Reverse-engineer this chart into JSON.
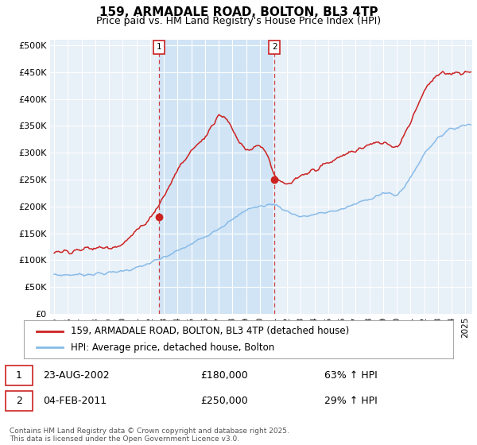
{
  "title": "159, ARMADALE ROAD, BOLTON, BL3 4TP",
  "subtitle": "Price paid vs. HM Land Registry's House Price Index (HPI)",
  "red_label": "159, ARMADALE ROAD, BOLTON, BL3 4TP (detached house)",
  "blue_label": "HPI: Average price, detached house, Bolton",
  "red_color": "#cc2222",
  "blue_color": "#88bbe8",
  "highlight_color": "#d0e4f5",
  "plot_bg": "#e8f0f8",
  "yticks": [
    0,
    50000,
    100000,
    150000,
    200000,
    250000,
    300000,
    350000,
    400000,
    450000,
    500000
  ],
  "ylim": [
    0,
    510000
  ],
  "xlim_start": 1994.7,
  "xlim_end": 2025.5,
  "ann1_x": 2002.65,
  "ann1_y": 180000,
  "ann2_x": 2011.08,
  "ann2_y": 250000,
  "footer": "Contains HM Land Registry data © Crown copyright and database right 2025.\nThis data is licensed under the Open Government Licence v3.0.",
  "legend1_row": [
    "1",
    "23-AUG-2002",
    "£180,000",
    "63% ↑ HPI"
  ],
  "legend2_row": [
    "2",
    "04-FEB-2011",
    "£250,000",
    "29% ↑ HPI"
  ]
}
